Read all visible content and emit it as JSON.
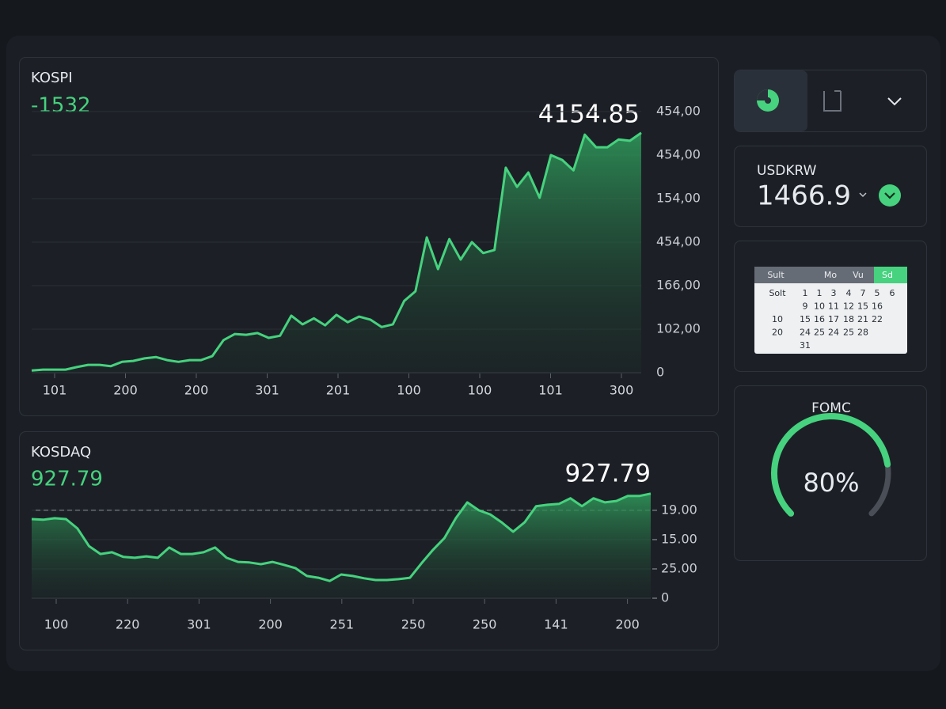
{
  "chart_data": [
    {
      "type": "area",
      "title": "KOSPI",
      "change": -1532,
      "last_value": 4154.85,
      "color": "#46d27e",
      "grid": true,
      "ylim": [
        0,
        6
      ],
      "yticks": [
        0,
        {
          "value": 1,
          "label": "102,00"
        },
        {
          "value": 2,
          "label": "166,00"
        },
        {
          "value": 3,
          "label": "454,00"
        },
        {
          "value": 4,
          "label": "154,00"
        },
        {
          "value": 5,
          "label": "454,00"
        },
        {
          "value": 6,
          "label": "454,00"
        }
      ],
      "x_labels": [
        "101",
        "200",
        "200",
        "301",
        "201",
        "100",
        "100",
        "101",
        "300"
      ],
      "values": [
        0.05,
        0.07,
        0.07,
        0.07,
        0.13,
        0.18,
        0.18,
        0.15,
        0.25,
        0.27,
        0.33,
        0.36,
        0.29,
        0.25,
        0.29,
        0.29,
        0.38,
        0.75,
        0.89,
        0.87,
        0.91,
        0.8,
        0.85,
        1.31,
        1.11,
        1.25,
        1.09,
        1.33,
        1.16,
        1.29,
        1.22,
        1.05,
        1.11,
        1.65,
        1.87,
        3.11,
        2.38,
        3.07,
        2.6,
        3.0,
        2.75,
        2.82,
        4.71,
        4.27,
        4.6,
        4.02,
        5.0,
        4.89,
        4.65,
        5.47,
        5.18,
        5.18,
        5.36,
        5.33,
        5.51
      ]
    },
    {
      "type": "area",
      "title": "KOSDAQ",
      "change": 927.79,
      "last_value": 927.79,
      "color": "#46d27e",
      "grid": true,
      "ylim": [
        0,
        3.7
      ],
      "yticks": [
        0,
        {
          "value": 1,
          "label": "25.00"
        },
        {
          "value": 2,
          "label": "15.00"
        },
        {
          "value": 3,
          "label": "19.00"
        }
      ],
      "reference_line": 3,
      "x_labels": [
        "100",
        "220",
        "301",
        "200",
        "251",
        "250",
        "250",
        "141",
        "200"
      ],
      "values": [
        2.7,
        2.68,
        2.73,
        2.7,
        2.38,
        1.78,
        1.51,
        1.57,
        1.41,
        1.38,
        1.43,
        1.38,
        1.73,
        1.51,
        1.51,
        1.57,
        1.73,
        1.38,
        1.24,
        1.22,
        1.16,
        1.24,
        1.14,
        1.03,
        0.76,
        0.7,
        0.59,
        0.81,
        0.76,
        0.68,
        0.62,
        0.62,
        0.65,
        0.7,
        1.19,
        1.65,
        2.05,
        2.73,
        3.27,
        3.0,
        2.86,
        2.59,
        2.27,
        2.59,
        3.14,
        3.19,
        3.22,
        3.41,
        3.14,
        3.41,
        3.27,
        3.32,
        3.49,
        3.49,
        3.57
      ]
    }
  ],
  "usdkrw": {
    "label": "USDKRW",
    "value": 1466.9
  },
  "calendar": {
    "headers": [
      "Sult",
      "Mo",
      "Vu",
      "Sd"
    ],
    "rows": [
      [
        "Solt",
        "1",
        "1",
        "3",
        "4",
        "7",
        "5",
        "6"
      ],
      [
        null,
        "9",
        "10",
        "11",
        "12",
        "15",
        "16",
        null
      ],
      [
        "10",
        "15",
        "16",
        "17",
        "18",
        "21",
        "22",
        null
      ],
      [
        "20",
        "24",
        "25",
        "24",
        "25",
        "28",
        null,
        null
      ],
      [
        null,
        "31",
        null,
        null,
        null,
        null,
        null,
        null
      ]
    ]
  },
  "fomc": {
    "label": "FOMC",
    "value": 80,
    "value_label": "80%"
  }
}
